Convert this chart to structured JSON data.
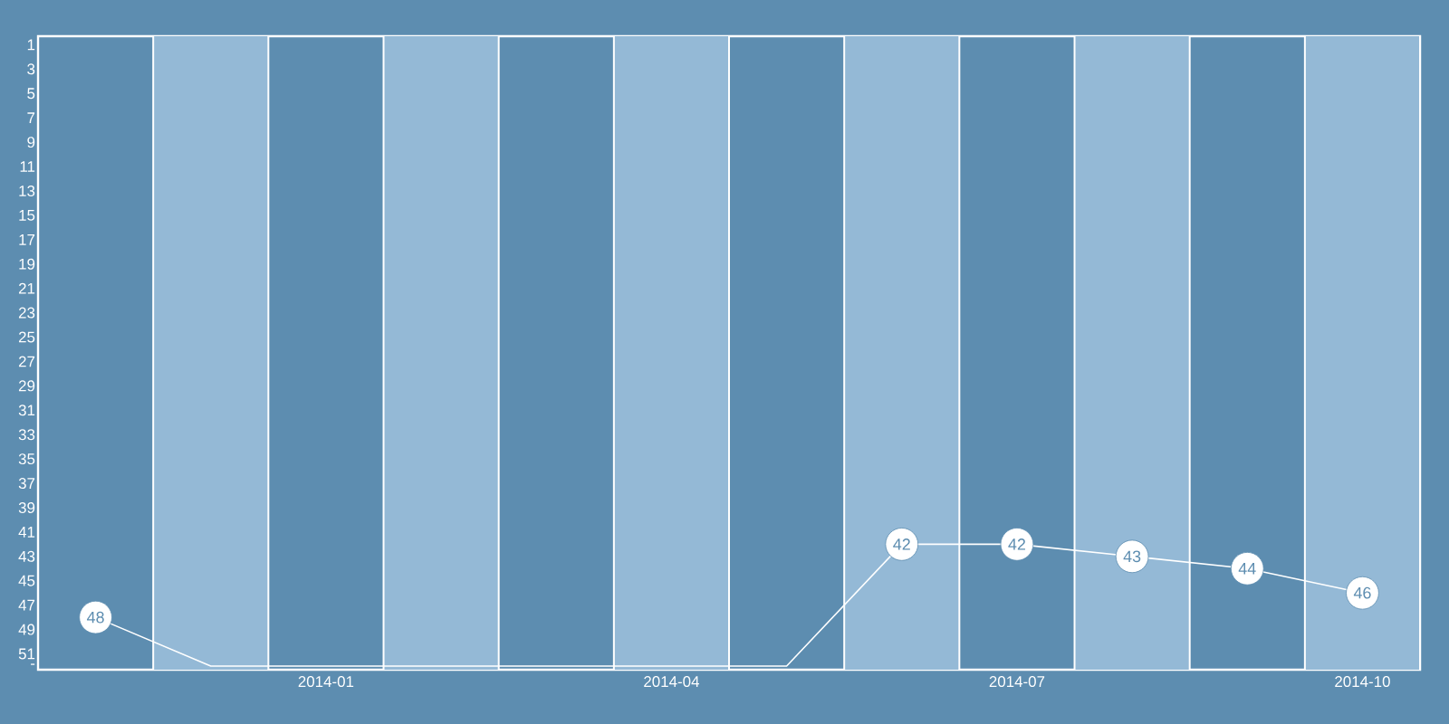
{
  "chart_data": {
    "type": "line",
    "x": [
      "2013-11",
      "2013-12",
      "2014-01",
      "2014-02",
      "2014-03",
      "2014-04",
      "2014-05",
      "2014-06",
      "2014-07",
      "2014-08",
      "2014-09",
      "2014-10"
    ],
    "series": [
      {
        "color": "#ffffff",
        "values": [
          48,
          52,
          52,
          52,
          52,
          52,
          52,
          42,
          42,
          43,
          44,
          46
        ],
        "value_labels": [
          "48",
          null,
          null,
          null,
          null,
          null,
          null,
          "42",
          "42",
          "43",
          "44",
          "46"
        ]
      }
    ],
    "marker": "circle",
    "xlim": [
      "2013-10-16",
      "2014-10-16"
    ],
    "xticks": [
      "2014-01",
      "2014-04",
      "2014-07",
      "2014-10"
    ],
    "ylim": [
      52.3,
      0.3
    ],
    "yticks": [
      1,
      3,
      5,
      7,
      9,
      11,
      13,
      15,
      17,
      19,
      21,
      23,
      25,
      27,
      29,
      31,
      33,
      35,
      37,
      39,
      41,
      43,
      45,
      47,
      49,
      51,
      {
        "value": 52,
        "label": "-"
      }
    ],
    "bands": [
      {
        "axis": "x",
        "from": "2013-11-16",
        "to": "2013-12-16",
        "color": "#94b9d6"
      },
      {
        "axis": "x",
        "from": "2014-01-16",
        "to": "2014-02-16",
        "color": "#94b9d6"
      },
      {
        "axis": "x",
        "from": "2014-03-16",
        "to": "2014-04-16",
        "color": "#94b9d6"
      },
      {
        "axis": "x",
        "from": "2014-05-16",
        "to": "2014-06-16",
        "color": "#94b9d6"
      },
      {
        "axis": "x",
        "from": "2014-07-16",
        "to": "2014-08-16",
        "color": "#94b9d6"
      },
      {
        "axis": "x",
        "from": "2014-09-16",
        "to": "2014-10-16",
        "color": "#94b9d6"
      }
    ]
  }
}
